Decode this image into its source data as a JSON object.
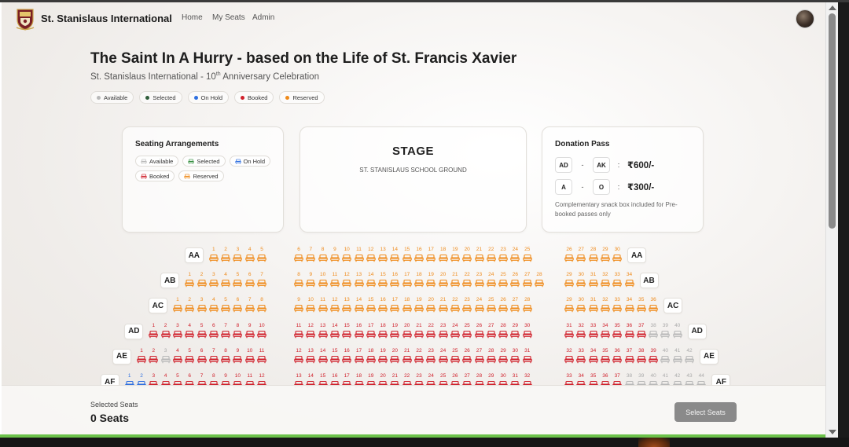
{
  "nav": {
    "brand": "St. Stanislaus International",
    "links": [
      "Home",
      "My Seats",
      "Admin"
    ]
  },
  "event": {
    "title": "The Saint In A Hurry - based on the Life of St. Francis Xavier",
    "subtitle_prefix": "St. Stanislaus International - 10",
    "subtitle_sup": "th",
    "subtitle_suffix": " Anniversary Celebration"
  },
  "legend": [
    {
      "label": "Available",
      "color": "#b8b8b8"
    },
    {
      "label": "Selected",
      "color": "#2f5d3a"
    },
    {
      "label": "On Hold",
      "color": "#2e6fe0"
    },
    {
      "label": "Booked",
      "color": "#d0202b"
    },
    {
      "label": "Reserved",
      "color": "#ef8a1a"
    }
  ],
  "seating_arrangements": {
    "title": "Seating Arrangements",
    "chips": [
      {
        "label": "Available",
        "color": "#b8b8b8"
      },
      {
        "label": "Selected",
        "color": "#2f8a3a"
      },
      {
        "label": "On Hold",
        "color": "#2e6fe0"
      },
      {
        "label": "Booked",
        "color": "#d0202b"
      },
      {
        "label": "Reserved",
        "color": "#ef8a1a"
      }
    ]
  },
  "stage": {
    "title": "STAGE",
    "subtitle": "ST. STANISLAUS SCHOOL GROUND"
  },
  "donation_pass": {
    "title": "Donation Pass",
    "tiers": [
      {
        "from": "AD",
        "to": "AK",
        "price": "₹600/-"
      },
      {
        "from": "A",
        "to": "O",
        "price": "₹300/-"
      }
    ],
    "note": "Complementary snack box included for Pre-booked passes only"
  },
  "seat_colors": {
    "available": "#b8b8b8",
    "onhold": "#2e6fe0",
    "booked": "#d0202b",
    "reserved": "#ef8a1a"
  },
  "seat_rows": [
    {
      "label": "AA",
      "blocks": [
        {
          "nums": [
            1,
            2,
            3,
            4,
            5
          ],
          "status": [
            "reserved",
            "reserved",
            "reserved",
            "reserved",
            "reserved"
          ]
        },
        {
          "nums": [
            6,
            7,
            8,
            9,
            10,
            11,
            12,
            13,
            14,
            15,
            16,
            17,
            18,
            19,
            20,
            21,
            22,
            23,
            24,
            25
          ],
          "status": [
            "reserved",
            "reserved",
            "reserved",
            "reserved",
            "reserved",
            "reserved",
            "reserved",
            "reserved",
            "reserved",
            "reserved",
            "reserved",
            "reserved",
            "reserved",
            "reserved",
            "reserved",
            "reserved",
            "reserved",
            "reserved",
            "reserved",
            "reserved"
          ]
        },
        {
          "nums": [
            26,
            27,
            28,
            29,
            30
          ],
          "status": [
            "reserved",
            "reserved",
            "reserved",
            "reserved",
            "reserved"
          ]
        }
      ]
    },
    {
      "label": "AB",
      "blocks": [
        {
          "nums": [
            1,
            2,
            3,
            4,
            5,
            6,
            7
          ],
          "status": [
            "reserved",
            "reserved",
            "reserved",
            "reserved",
            "reserved",
            "reserved",
            "reserved"
          ]
        },
        {
          "nums": [
            8,
            9,
            10,
            11,
            12,
            13,
            14,
            15,
            16,
            17,
            18,
            19,
            20,
            21,
            22,
            23,
            24,
            25,
            26,
            27,
            28
          ],
          "status": [
            "reserved",
            "reserved",
            "reserved",
            "reserved",
            "reserved",
            "reserved",
            "reserved",
            "reserved",
            "reserved",
            "reserved",
            "reserved",
            "reserved",
            "reserved",
            "reserved",
            "reserved",
            "reserved",
            "reserved",
            "reserved",
            "reserved",
            "reserved",
            "reserved"
          ]
        },
        {
          "nums": [
            29,
            30,
            31,
            32,
            33,
            34
          ],
          "status": [
            "reserved",
            "reserved",
            "reserved",
            "reserved",
            "reserved",
            "reserved"
          ]
        }
      ]
    },
    {
      "label": "AC",
      "blocks": [
        {
          "nums": [
            1,
            2,
            3,
            4,
            5,
            6,
            7,
            8
          ],
          "status": [
            "reserved",
            "reserved",
            "reserved",
            "reserved",
            "reserved",
            "reserved",
            "reserved",
            "reserved"
          ]
        },
        {
          "nums": [
            9,
            10,
            11,
            12,
            13,
            14,
            15,
            16,
            17,
            18,
            19,
            20,
            21,
            22,
            23,
            24,
            25,
            26,
            27,
            28
          ],
          "status": [
            "reserved",
            "reserved",
            "reserved",
            "reserved",
            "reserved",
            "reserved",
            "reserved",
            "reserved",
            "reserved",
            "reserved",
            "reserved",
            "reserved",
            "reserved",
            "reserved",
            "reserved",
            "reserved",
            "reserved",
            "reserved",
            "reserved",
            "reserved"
          ]
        },
        {
          "nums": [
            29,
            30,
            31,
            32,
            33,
            34,
            35,
            36
          ],
          "status": [
            "reserved",
            "reserved",
            "reserved",
            "reserved",
            "reserved",
            "reserved",
            "reserved",
            "reserved"
          ]
        }
      ]
    },
    {
      "label": "AD",
      "blocks": [
        {
          "nums": [
            1,
            2,
            3,
            4,
            5,
            6,
            7,
            8,
            9,
            10
          ],
          "status": [
            "booked",
            "booked",
            "booked",
            "booked",
            "booked",
            "booked",
            "booked",
            "booked",
            "booked",
            "booked"
          ]
        },
        {
          "nums": [
            11,
            12,
            13,
            14,
            15,
            16,
            17,
            18,
            19,
            20,
            21,
            22,
            23,
            24,
            25,
            26,
            27,
            28,
            29,
            30
          ],
          "status": [
            "booked",
            "booked",
            "booked",
            "booked",
            "booked",
            "booked",
            "booked",
            "booked",
            "booked",
            "booked",
            "booked",
            "booked",
            "booked",
            "booked",
            "booked",
            "booked",
            "booked",
            "booked",
            "booked",
            "booked"
          ]
        },
        {
          "nums": [
            31,
            32,
            33,
            34,
            35,
            36,
            37,
            38,
            39,
            40
          ],
          "status": [
            "booked",
            "booked",
            "booked",
            "booked",
            "booked",
            "booked",
            "booked",
            "available",
            "available",
            "available"
          ]
        }
      ]
    },
    {
      "label": "AE",
      "blocks": [
        {
          "nums": [
            1,
            2,
            3,
            4,
            5,
            6,
            7,
            8,
            9,
            10,
            11
          ],
          "status": [
            "booked",
            "booked",
            "available",
            "booked",
            "booked",
            "booked",
            "booked",
            "booked",
            "booked",
            "booked",
            "booked"
          ]
        },
        {
          "nums": [
            12,
            13,
            14,
            15,
            16,
            17,
            18,
            19,
            20,
            21,
            22,
            23,
            24,
            25,
            26,
            27,
            28,
            29,
            30,
            31
          ],
          "status": [
            "booked",
            "booked",
            "booked",
            "booked",
            "booked",
            "booked",
            "booked",
            "booked",
            "booked",
            "booked",
            "booked",
            "booked",
            "booked",
            "booked",
            "booked",
            "booked",
            "booked",
            "booked",
            "booked",
            "booked"
          ]
        },
        {
          "nums": [
            32,
            33,
            34,
            35,
            36,
            37,
            38,
            39,
            40,
            41,
            42
          ],
          "status": [
            "booked",
            "booked",
            "booked",
            "booked",
            "booked",
            "booked",
            "booked",
            "booked",
            "available",
            "available",
            "available"
          ]
        }
      ]
    },
    {
      "label": "AF",
      "blocks": [
        {
          "nums": [
            1,
            2,
            3,
            4,
            5,
            6,
            7,
            8,
            9,
            10,
            11,
            12
          ],
          "status": [
            "onhold",
            "onhold",
            "booked",
            "booked",
            "booked",
            "booked",
            "booked",
            "booked",
            "booked",
            "booked",
            "booked",
            "booked"
          ]
        },
        {
          "nums": [
            13,
            14,
            15,
            16,
            17,
            18,
            19,
            20,
            21,
            22,
            23,
            24,
            25,
            26,
            27,
            28,
            29,
            30,
            31,
            32
          ],
          "status": [
            "booked",
            "booked",
            "booked",
            "booked",
            "booked",
            "booked",
            "booked",
            "booked",
            "booked",
            "booked",
            "booked",
            "booked",
            "booked",
            "booked",
            "booked",
            "booked",
            "booked",
            "booked",
            "booked",
            "booked"
          ]
        },
        {
          "nums": [
            33,
            34,
            35,
            36,
            37,
            38,
            39,
            40,
            41,
            42,
            43,
            44
          ],
          "status": [
            "booked",
            "booked",
            "booked",
            "booked",
            "booked",
            "available",
            "available",
            "available",
            "available",
            "available",
            "available",
            "available"
          ]
        }
      ]
    }
  ],
  "footer": {
    "selected_label": "Selected Seats",
    "selected_count": "0 Seats",
    "button_label": "Select Seats"
  }
}
